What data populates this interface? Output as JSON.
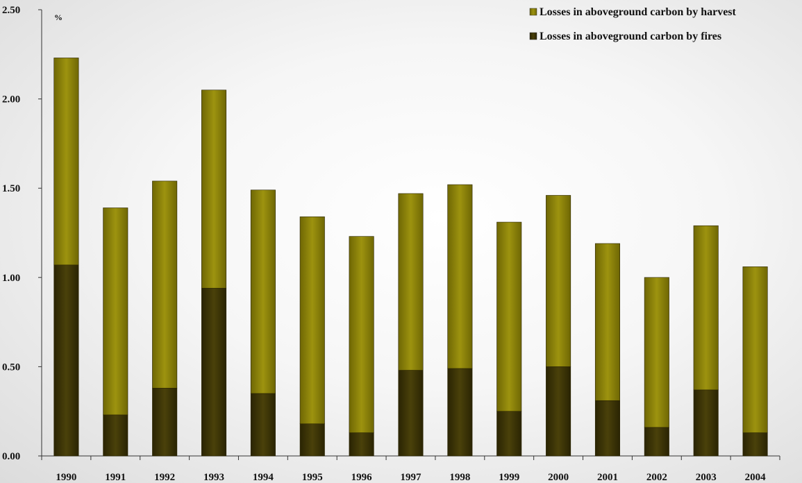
{
  "chart_data": {
    "type": "bar",
    "stacked": true,
    "unit_label": "%",
    "categories": [
      "1990",
      "1991",
      "1992",
      "1993",
      "1994",
      "1995",
      "1996",
      "1997",
      "1998",
      "1999",
      "2000",
      "2001",
      "2002",
      "2003",
      "2004"
    ],
    "series": [
      {
        "name": "Losses in aboveground carbon by fires",
        "color": "#3d3505",
        "values": [
          1.07,
          0.23,
          0.38,
          0.94,
          0.35,
          0.18,
          0.13,
          0.48,
          0.49,
          0.25,
          0.5,
          0.31,
          0.16,
          0.37,
          0.13
        ]
      },
      {
        "name": "Losses in aboveground carbon by harvest",
        "color": "#8e8408",
        "values": [
          1.16,
          1.16,
          1.16,
          1.11,
          1.14,
          1.16,
          1.1,
          0.99,
          1.03,
          1.06,
          0.96,
          0.88,
          0.84,
          0.92,
          0.93
        ]
      }
    ],
    "legend_order": [
      1,
      0
    ],
    "legend_position": "top-right",
    "ylim": [
      0,
      2.5
    ],
    "yticks": [
      "0.00",
      "0.50",
      "1.00",
      "1.50",
      "2.00",
      "2.50"
    ],
    "grid": false
  }
}
